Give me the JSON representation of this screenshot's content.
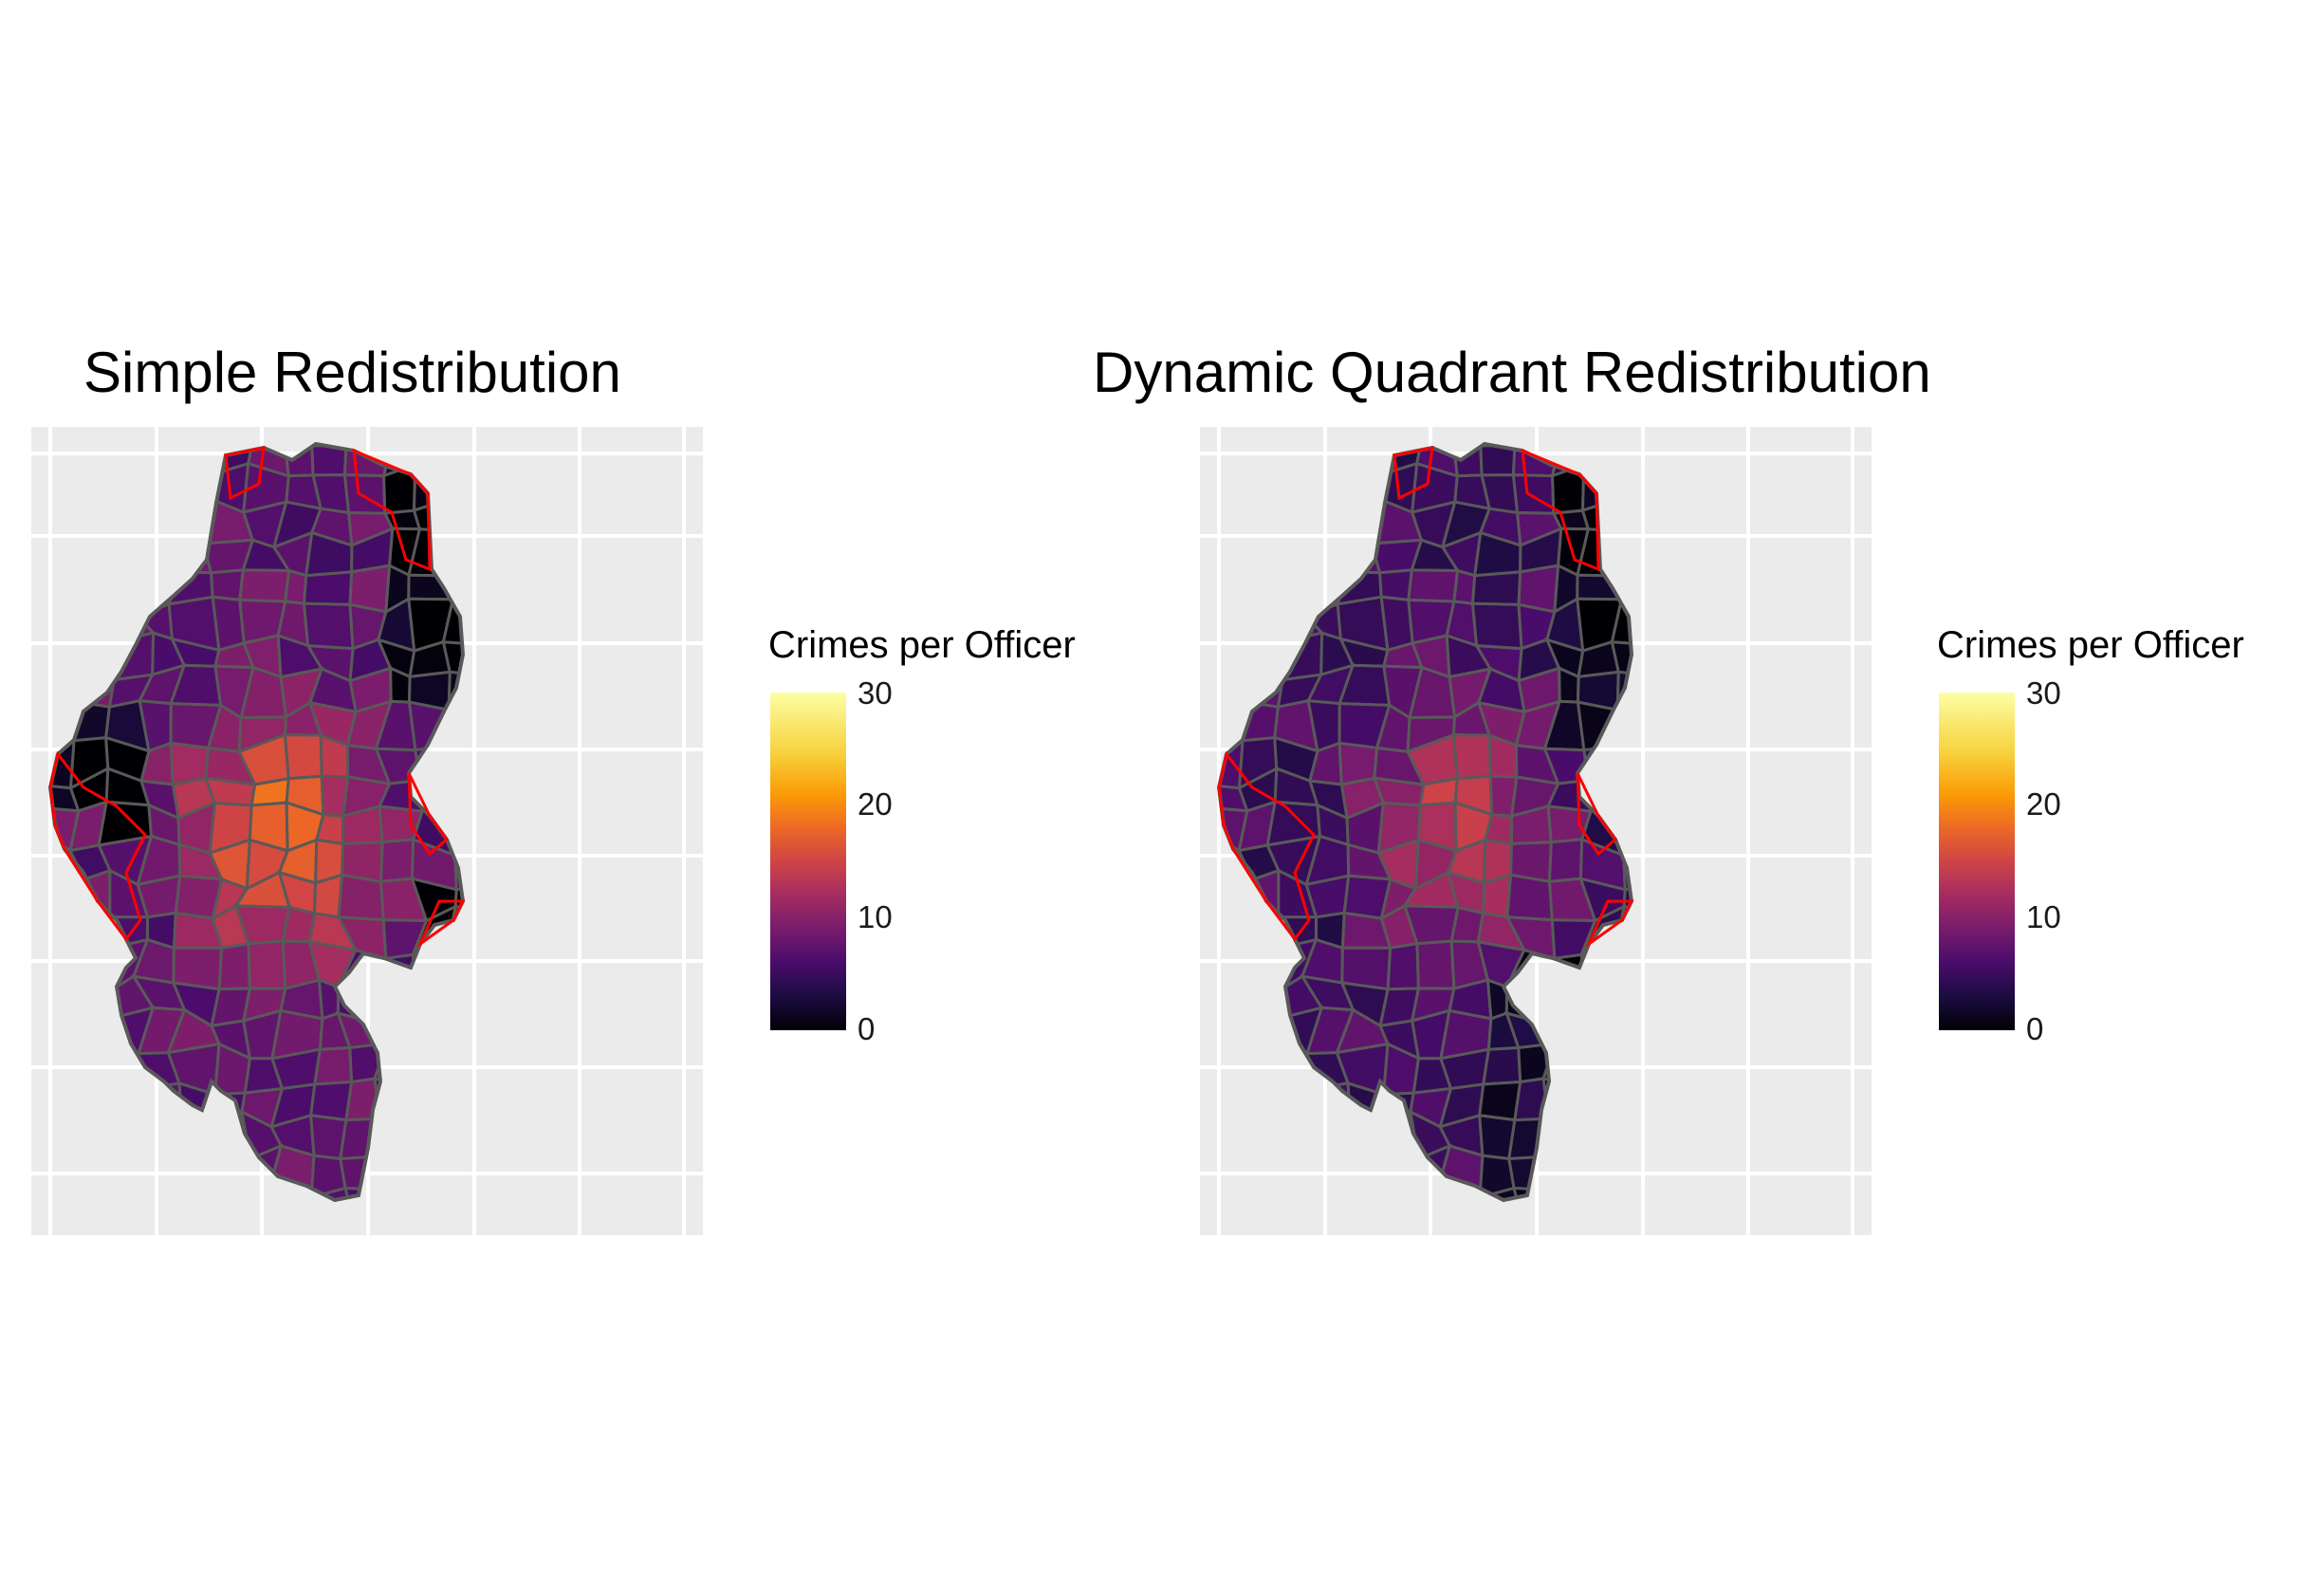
{
  "panels": [
    {
      "title": "Simple Redistribution",
      "legend": {
        "title": "Crimes per Officer",
        "ticks": [
          "0",
          "10",
          "20",
          "30"
        ]
      }
    },
    {
      "title": "Dynamic Quadrant Redistribution",
      "legend": {
        "title": "Crimes per Officer",
        "ticks": [
          "0",
          "10",
          "20",
          "30"
        ]
      }
    }
  ],
  "colors": {
    "panel_background": "#ebebeb",
    "gridline": "#ffffff",
    "district_border": "#595959",
    "highlight_border": "#ff0000",
    "scale": [
      "#000004",
      "#1b0c41",
      "#4a0c6b",
      "#781c6d",
      "#a52c60",
      "#cf4446",
      "#ed6925",
      "#fb9b06",
      "#f7d13d",
      "#fcffa4"
    ]
  }
}
